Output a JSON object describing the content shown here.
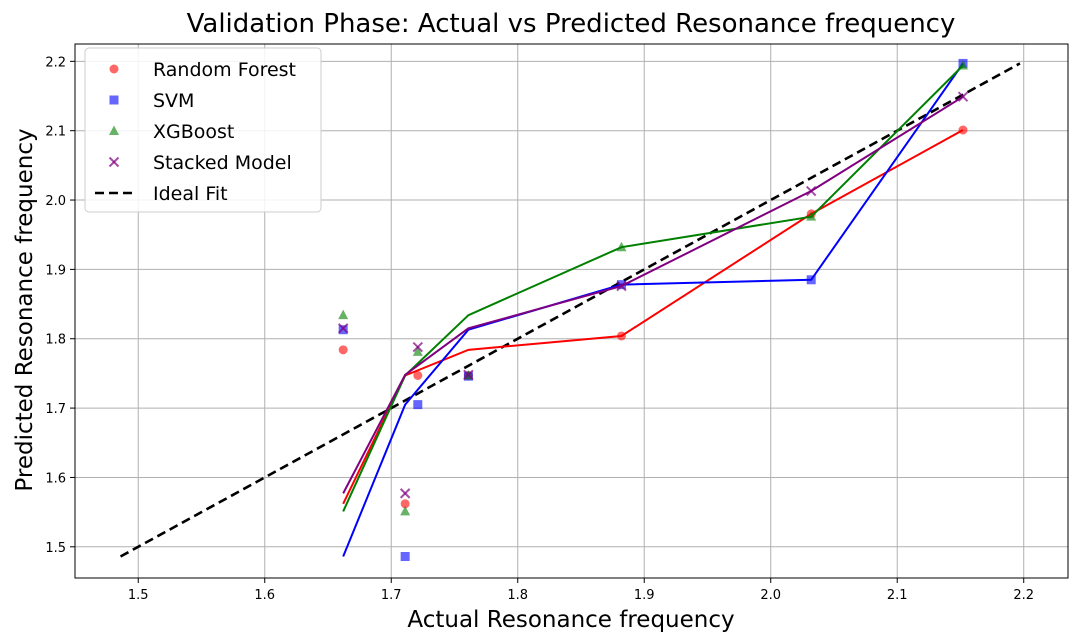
{
  "chart_data": {
    "type": "scatter",
    "title": "Validation Phase: Actual vs Predicted Resonance frequency",
    "xlabel": "Actual Resonance frequency",
    "ylabel": "Predicted Resonance frequency",
    "xlim": [
      1.45,
      2.235
    ],
    "ylim": [
      1.455,
      2.225
    ],
    "xticks": [
      "1.5",
      "1.6",
      "1.7",
      "1.8",
      "1.9",
      "2.0",
      "2.1",
      "2.2"
    ],
    "yticks": [
      "1.5",
      "1.6",
      "1.7",
      "1.8",
      "1.9",
      "2.0",
      "2.1",
      "2.2"
    ],
    "grid": true,
    "legend_position": "top-left",
    "x": [
      1.662,
      1.711,
      1.721,
      1.761,
      1.882,
      2.032,
      2.152
    ],
    "series": [
      {
        "name": "Random Forest",
        "color": "#ff0000",
        "marker": "circle",
        "scatter": [
          [
            1.662,
            1.784
          ],
          [
            1.711,
            1.562
          ],
          [
            1.721,
            1.747
          ],
          [
            1.761,
            1.747
          ],
          [
            1.882,
            1.804
          ],
          [
            2.032,
            1.98
          ],
          [
            2.152,
            2.101
          ]
        ],
        "line": [
          [
            1.662,
            1.562
          ],
          [
            1.711,
            1.747
          ],
          [
            1.761,
            1.784
          ],
          [
            1.882,
            1.804
          ],
          [
            2.032,
            1.98
          ],
          [
            2.152,
            2.101
          ]
        ]
      },
      {
        "name": "SVM",
        "color": "#0000ff",
        "marker": "square",
        "scatter": [
          [
            1.662,
            1.813
          ],
          [
            1.711,
            1.486
          ],
          [
            1.721,
            1.705
          ],
          [
            1.761,
            1.746
          ],
          [
            1.882,
            1.878
          ],
          [
            2.032,
            1.885
          ],
          [
            2.152,
            2.197
          ]
        ],
        "line": [
          [
            1.662,
            1.486
          ],
          [
            1.711,
            1.705
          ],
          [
            1.761,
            1.813
          ],
          [
            1.882,
            1.878
          ],
          [
            2.032,
            1.885
          ],
          [
            2.152,
            2.197
          ]
        ]
      },
      {
        "name": "XGBoost",
        "color": "#008000",
        "marker": "triangle",
        "scatter": [
          [
            1.662,
            1.834
          ],
          [
            1.711,
            1.551
          ],
          [
            1.721,
            1.781
          ],
          [
            1.761,
            1.747
          ],
          [
            1.882,
            1.932
          ],
          [
            2.032,
            1.976
          ],
          [
            2.152,
            2.194
          ]
        ],
        "line": [
          [
            1.662,
            1.551
          ],
          [
            1.711,
            1.747
          ],
          [
            1.761,
            1.834
          ],
          [
            1.882,
            1.932
          ],
          [
            2.032,
            1.976
          ],
          [
            2.152,
            2.194
          ]
        ]
      },
      {
        "name": "Stacked Model",
        "color": "#800080",
        "marker": "x",
        "scatter": [
          [
            1.662,
            1.815
          ],
          [
            1.711,
            1.577
          ],
          [
            1.721,
            1.788
          ],
          [
            1.761,
            1.748
          ],
          [
            1.882,
            1.876
          ],
          [
            2.032,
            2.013
          ],
          [
            2.152,
            2.149
          ]
        ],
        "line": [
          [
            1.662,
            1.577
          ],
          [
            1.711,
            1.748
          ],
          [
            1.761,
            1.815
          ],
          [
            1.882,
            1.876
          ],
          [
            2.032,
            2.013
          ],
          [
            2.152,
            2.149
          ]
        ]
      }
    ],
    "ideal_fit": {
      "name": "Ideal Fit",
      "color": "#000000",
      "points": [
        [
          1.486,
          1.486
        ],
        [
          2.197,
          2.197
        ]
      ]
    }
  }
}
